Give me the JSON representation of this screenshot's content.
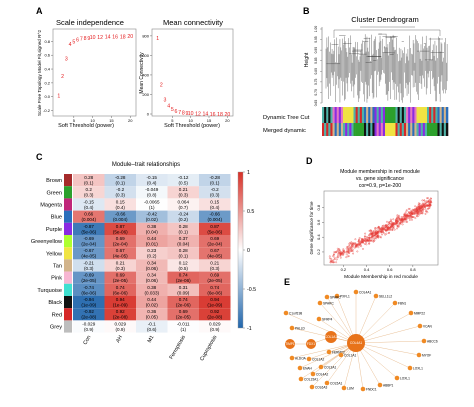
{
  "panelA": {
    "letter": "A",
    "left": {
      "title": "Scale independence",
      "ylabel": "Scale Free Topology Model Fit,signed R^2",
      "xlabel": "Soft Threshold (power)",
      "yticks": [
        "-0.2",
        "0.0",
        "0.2",
        "0.4",
        "0.6",
        "0.8"
      ],
      "xticks": [
        "5",
        "10",
        "15",
        "20"
      ],
      "points": [
        {
          "x": 1,
          "y": 0.02,
          "label": "1"
        },
        {
          "x": 2,
          "y": 0.3,
          "label": "2"
        },
        {
          "x": 3,
          "y": 0.55,
          "label": "3"
        },
        {
          "x": 4,
          "y": 0.76,
          "label": "4"
        },
        {
          "x": 5,
          "y": 0.8,
          "label": "5"
        },
        {
          "x": 6,
          "y": 0.83,
          "label": "6"
        },
        {
          "x": 7,
          "y": 0.84,
          "label": "7"
        },
        {
          "x": 8,
          "y": 0.85,
          "label": "8"
        },
        {
          "x": 9,
          "y": 0.85,
          "label": "9"
        },
        {
          "x": 10,
          "y": 0.86,
          "label": "10"
        },
        {
          "x": 12,
          "y": 0.86,
          "label": "12"
        },
        {
          "x": 14,
          "y": 0.87,
          "label": "14"
        },
        {
          "x": 16,
          "y": 0.87,
          "label": "16"
        },
        {
          "x": 18,
          "y": 0.87,
          "label": "18"
        },
        {
          "x": 20,
          "y": 0.88,
          "label": "20"
        }
      ]
    },
    "right": {
      "title": "Mean connectivity",
      "ylabel": "Mean Connectivity",
      "xlabel": "Soft Threshold (power)",
      "yticks": [
        "0",
        "200",
        "400",
        "600",
        "800"
      ],
      "xticks": [
        "5",
        "10",
        "15",
        "20"
      ],
      "points": [
        {
          "x": 1,
          "y": 780,
          "label": "1"
        },
        {
          "x": 2,
          "y": 300,
          "label": "2"
        },
        {
          "x": 3,
          "y": 150,
          "label": "3"
        },
        {
          "x": 4,
          "y": 85,
          "label": "4"
        },
        {
          "x": 5,
          "y": 50,
          "label": "5"
        },
        {
          "x": 6,
          "y": 32,
          "label": "6"
        },
        {
          "x": 7,
          "y": 22,
          "label": "7"
        },
        {
          "x": 8,
          "y": 15,
          "label": "8"
        },
        {
          "x": 9,
          "y": 11,
          "label": "9"
        },
        {
          "x": 10,
          "y": 8,
          "label": "10"
        },
        {
          "x": 12,
          "y": 5,
          "label": "12"
        },
        {
          "x": 14,
          "y": 3,
          "label": "14"
        },
        {
          "x": 16,
          "y": 2,
          "label": "16"
        },
        {
          "x": 18,
          "y": 1,
          "label": "18"
        },
        {
          "x": 20,
          "y": 1,
          "label": "20"
        }
      ]
    }
  },
  "panelB": {
    "letter": "B",
    "title": "Cluster Dendrogram",
    "ylabel": "Height",
    "yticks": [
      "0.65",
      "0.70",
      "0.75",
      "0.80",
      "0.85",
      "0.90",
      "0.95",
      "1.00"
    ],
    "row1_label": "Dynamic Tree Cut",
    "row2_label": "Merged dynamic",
    "color_strip": [
      "#4fb3a8",
      "#8a2be2",
      "#f0e442",
      "#d62728",
      "#2a6ebb",
      "#4fb3a8",
      "#2ca02c",
      "#111111",
      "#e377c2",
      "#f0e442",
      "#4fb3a8",
      "#d2b48c",
      "#8a2be2",
      "#2ca02c"
    ]
  },
  "panelC": {
    "letter": "C",
    "title": "Module–trait relationships",
    "columns": [
      "Con",
      "AH",
      "M1",
      "Ferroptosis",
      "Cuproptosis"
    ],
    "colorbar_ticks": [
      "1",
      "0.5",
      "0",
      "-0.5",
      "-1"
    ],
    "rows": [
      {
        "name": "Brown",
        "swatch": "#a52a2a",
        "cells": [
          [
            0.28,
            "(0.1)"
          ],
          [
            -0.28,
            "(0.1)"
          ],
          [
            -0.15,
            "(0.4)"
          ],
          [
            -0.12,
            "(0.5)"
          ],
          [
            -0.28,
            "(0.1)"
          ]
        ]
      },
      {
        "name": "Green",
        "swatch": "#2ca02c",
        "cells": [
          [
            0.2,
            "(0.3)"
          ],
          [
            -0.2,
            "(0.3)"
          ],
          [
            -0.049,
            "(0.8)"
          ],
          [
            0.21,
            "(0.3)"
          ],
          [
            -0.2,
            "(0.3)"
          ]
        ]
      },
      {
        "name": "Magenta",
        "swatch": "#c0267a",
        "cells": [
          [
            -0.15,
            "(0.4)"
          ],
          [
            0.15,
            "(0.4)"
          ],
          [
            -0.0065,
            "(1)"
          ],
          [
            0.064,
            "(0.7)"
          ],
          [
            0.15,
            "(0.4)"
          ]
        ]
      },
      {
        "name": "Blue",
        "swatch": "#2a6ebb",
        "cells": [
          [
            0.66,
            "(0.004)"
          ],
          [
            -0.66,
            "(0.004)"
          ],
          [
            -0.42,
            "(0.02)"
          ],
          [
            -0.24,
            "(0.2)"
          ],
          [
            -0.66,
            "(0.004)"
          ]
        ]
      },
      {
        "name": "Purple",
        "swatch": "#8a2be2",
        "cells": [
          [
            -0.87,
            "(5e-06)"
          ],
          [
            0.87,
            "(5e-06)"
          ],
          [
            0.38,
            "(0.04)"
          ],
          [
            0.28,
            "(0.1)"
          ],
          [
            0.87,
            "(5e-06)"
          ]
        ]
      },
      {
        "name": "Greenyellow",
        "swatch": "#adff2f",
        "cells": [
          [
            -0.69,
            "(2e-04)"
          ],
          [
            0.69,
            "(2e-04)"
          ],
          [
            0.44,
            "(0.01)"
          ],
          [
            0.37,
            "(0.04)"
          ],
          [
            0.69,
            "(2e-04)"
          ]
        ]
      },
      {
        "name": "Yellow",
        "swatch": "#f0e442",
        "cells": [
          [
            -0.67,
            "(4e-05)"
          ],
          [
            0.67,
            "(4e-05)"
          ],
          [
            0.23,
            "(0.2)"
          ],
          [
            0.28,
            "(0.1)"
          ],
          [
            0.67,
            "(4e-05)"
          ]
        ]
      },
      {
        "name": "Tan",
        "swatch": "#d2b48c",
        "cells": [
          [
            -0.21,
            "(0.3)"
          ],
          [
            0.21,
            "(0.3)"
          ],
          [
            0.34,
            "(0.06)"
          ],
          [
            0.12,
            "(0.5)"
          ],
          [
            0.21,
            "(0.3)"
          ]
        ]
      },
      {
        "name": "Pink",
        "swatch": "#f7b6d2",
        "cells": [
          [
            -0.69,
            "(2e-05)"
          ],
          [
            0.69,
            "(2e-05)"
          ],
          [
            0.34,
            "(0.06)"
          ],
          [
            0.74,
            "(2e-06)"
          ],
          [
            0.69,
            "(2e-05)"
          ]
        ]
      },
      {
        "name": "Turquoise",
        "swatch": "#40e0d0",
        "cells": [
          [
            -0.74,
            "(6e-06)"
          ],
          [
            0.74,
            "(6e-06)"
          ],
          [
            0.38,
            "(0.033)"
          ],
          [
            0.31,
            "(0.09)"
          ],
          [
            0.74,
            "(6e-06)"
          ]
        ]
      },
      {
        "name": "Black",
        "swatch": "#111111",
        "cells": [
          [
            -0.94,
            "(1e-09)"
          ],
          [
            0.94,
            "(1e-09)"
          ],
          [
            0.44,
            "(0.02)"
          ],
          [
            0.74,
            "(2e-06)"
          ],
          [
            0.94,
            "(1e-09)"
          ]
        ]
      },
      {
        "name": "Red",
        "swatch": "#d62728",
        "cells": [
          [
            -0.92,
            "(2e-08)"
          ],
          [
            0.92,
            "(2e-08)"
          ],
          [
            0.36,
            "(0.05)"
          ],
          [
            0.69,
            "(2e-05)"
          ],
          [
            0.92,
            "(2e-08)"
          ]
        ]
      },
      {
        "name": "Grey",
        "swatch": "#bdbdbd",
        "cells": [
          [
            -0.029,
            "(0.9)"
          ],
          [
            0.029,
            "(0.9)"
          ],
          [
            -0.1,
            "(0.6)"
          ],
          [
            -0.011,
            "(1)"
          ],
          [
            0.029,
            "(0.9)"
          ]
        ]
      }
    ]
  },
  "panelD": {
    "letter": "D",
    "title_line1": "Module membership in red module",
    "title_line2": "vs. gene significance",
    "title_line3": "cor=0.9, p=1e-200",
    "xlabel": "Module Membership in red module",
    "ylabel": "Gene significance for time",
    "xticks": [
      "0.2",
      "0.4",
      "0.6",
      "0.8"
    ],
    "yticks": [
      "0.2",
      "0.4",
      "0.6",
      "0.8"
    ]
  },
  "panelE": {
    "letter": "E",
    "hubs": [
      {
        "id": "COL4A1",
        "label": "COL4A1"
      },
      {
        "id": "COL1A1",
        "label": "COL1A1"
      },
      {
        "id": "FDX1",
        "label": "FDX1"
      },
      {
        "id": "TIMP1",
        "label": "TIMP1"
      }
    ],
    "small_nodes": [
      {
        "label": "PXFL1"
      },
      {
        "label": "COL4A1"
      },
      {
        "label": "SELL1L2"
      },
      {
        "label": "FBN1"
      },
      {
        "label": "MMP22"
      },
      {
        "label": "VCAN"
      },
      {
        "label": "ABCC6"
      },
      {
        "label": "MYOF"
      },
      {
        "label": "LOXL1"
      },
      {
        "label": "LOXL1"
      },
      {
        "label": "ABBP1"
      },
      {
        "label": "FNDC1"
      },
      {
        "label": "LUM"
      },
      {
        "label": "COL5A1"
      },
      {
        "label": "COL4A2"
      },
      {
        "label": "COL1A2"
      },
      {
        "label": "SPARC"
      },
      {
        "label": "SFRP4"
      },
      {
        "label": "COL6A3"
      },
      {
        "label": "COL15A1"
      },
      {
        "label": "SPARC"
      },
      {
        "label": "C1orf198"
      },
      {
        "label": "PALLD"
      },
      {
        "label": "ALDOA"
      },
      {
        "label": "ENAH"
      },
      {
        "label": "FERMT2"
      },
      {
        "label": "COL3A1"
      },
      {
        "label": "COL1A1"
      }
    ]
  }
}
